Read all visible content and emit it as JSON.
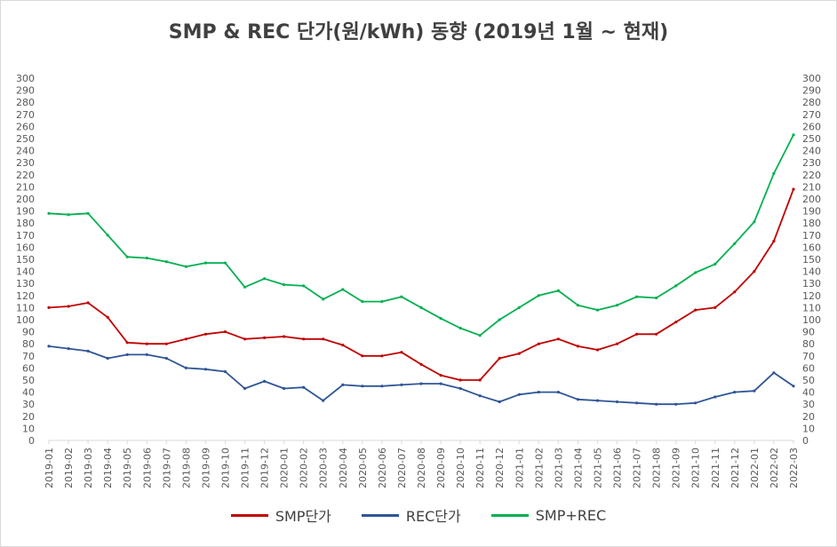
{
  "chart_data": {
    "type": "line",
    "title": "SMP & REC 단가(원/kWh) 동향 (2019년 1월 ~ 현재)",
    "xlabel": "",
    "ylabel": "",
    "ylim": [
      0,
      300
    ],
    "y_ticks": [
      "0",
      "10",
      "20",
      "30",
      "40",
      "50",
      "60",
      "70",
      "80",
      "90",
      "100",
      "110",
      "120",
      "130",
      "140",
      "150",
      "160",
      "170",
      "180",
      "190",
      "200",
      "210",
      "220",
      "230",
      "240",
      "250",
      "260",
      "270",
      "280",
      "290",
      "300"
    ],
    "x_ticks": [
      "2019-01",
      "2019-02",
      "2019-03",
      "2019-04",
      "2019-05",
      "2019-06",
      "2019-07",
      "2019-08",
      "2019-09",
      "2019-10",
      "2019-11",
      "2019-12",
      "2020-01",
      "2020-02",
      "2020-03",
      "2020-04",
      "2020-05",
      "2020-06",
      "2020-07",
      "2020-08",
      "2020-09",
      "2020-10",
      "2020-11",
      "2020-12",
      "2021-01",
      "2021-02",
      "2021-03",
      "2021-04",
      "2021-05",
      "2021-06",
      "2021-07",
      "2021-08",
      "2021-09",
      "2021-10",
      "2021-11",
      "2021-12",
      "2022-01",
      "2022-02",
      "2022-03"
    ],
    "x": [
      "2019-01",
      "2019-02",
      "2019-03",
      "2019-04",
      "2019-05",
      "2019-06",
      "2019-07",
      "2019-08",
      "2019-09",
      "2019-10",
      "2019-11",
      "2019-12",
      "2020-01",
      "2020-02",
      "2020-03",
      "2020-04",
      "2020-05",
      "2020-06",
      "2020-07",
      "2020-08",
      "2020-09",
      "2020-10",
      "2020-11",
      "2020-12",
      "2021-01",
      "2021-02",
      "2021-03",
      "2021-04",
      "2021-05",
      "2021-06",
      "2021-07",
      "2021-08",
      "2021-09",
      "2021-10",
      "2021-11",
      "2021-12",
      "2022-01",
      "2022-02",
      "2022-03"
    ],
    "grid": false,
    "legend": "bottom",
    "series": [
      {
        "name": "SMP단가",
        "color": "#c00000",
        "values": [
          110,
          111,
          114,
          102,
          81,
          80,
          80,
          84,
          88,
          90,
          84,
          85,
          86,
          84,
          84,
          79,
          70,
          70,
          73,
          63,
          54,
          50,
          50,
          68,
          72,
          80,
          84,
          78,
          75,
          80,
          88,
          88,
          98,
          108,
          110,
          123,
          140,
          165,
          208
        ]
      },
      {
        "name": "REC단가",
        "color": "#2f5597",
        "values": [
          78,
          76,
          74,
          68,
          71,
          71,
          68,
          60,
          59,
          57,
          43,
          49,
          43,
          44,
          33,
          46,
          45,
          45,
          46,
          47,
          47,
          43,
          37,
          32,
          38,
          40,
          40,
          34,
          33,
          32,
          31,
          30,
          30,
          31,
          36,
          40,
          41,
          56,
          45
        ]
      },
      {
        "name": "SMP+REC",
        "color": "#00b050",
        "values": [
          188,
          187,
          188,
          170,
          152,
          151,
          148,
          144,
          147,
          147,
          127,
          134,
          129,
          128,
          117,
          125,
          115,
          115,
          119,
          110,
          101,
          93,
          87,
          100,
          110,
          120,
          124,
          112,
          108,
          112,
          119,
          118,
          128,
          139,
          146,
          163,
          181,
          221,
          253
        ]
      }
    ]
  }
}
